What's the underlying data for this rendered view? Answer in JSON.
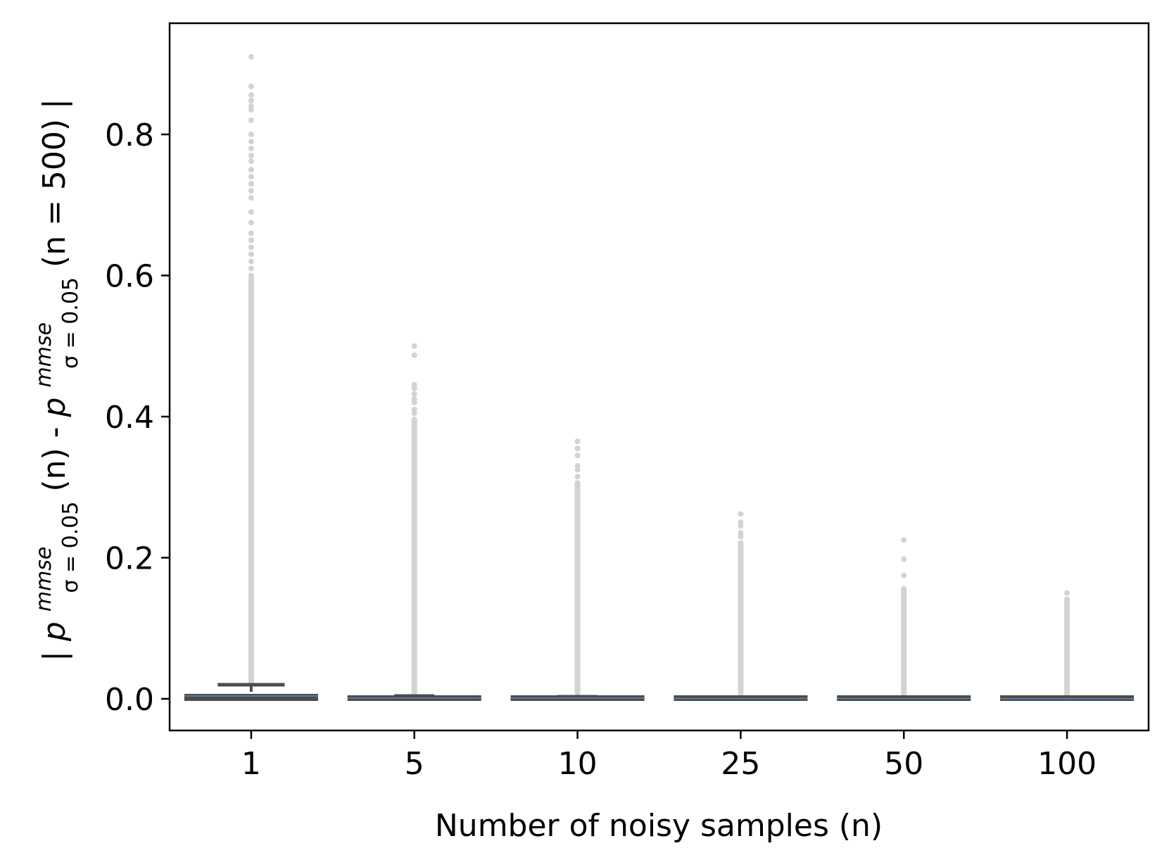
{
  "chart_data": {
    "type": "box",
    "xlabel": "Number of noisy samples (n)",
    "ylabel": {
      "prefix": "| ",
      "p1_base": "p",
      "p1_sup": "mmse",
      "p1_sub": "σ = 0.05",
      "p1_arg": "(n) - ",
      "p2_base": "p",
      "p2_sup": "mmse",
      "p2_sub": "σ = 0.05",
      "p2_arg": "(n = 500) |"
    },
    "categories": [
      "1",
      "5",
      "10",
      "25",
      "50",
      "100"
    ],
    "yticks": [
      "0.0",
      "0.2",
      "0.4",
      "0.6",
      "0.8"
    ],
    "ytick_values": [
      0.0,
      0.2,
      0.4,
      0.6,
      0.8
    ],
    "ylim": [
      -0.045,
      0.955
    ],
    "grid": false,
    "colors": {
      "box": "#4c4c4c",
      "median": "#5f86b8",
      "outliers": "#d3d3d3"
    },
    "boxes": [
      {
        "category": "1",
        "q1": 0.0,
        "median": 0.004,
        "q3": 0.01,
        "whisker_low": 0.0,
        "whisker_high": 0.02,
        "outliers": [
          0.91,
          0.868,
          0.856,
          0.848,
          0.84,
          0.835,
          0.82,
          0.8,
          0.79,
          0.78,
          0.77,
          0.762,
          0.75,
          0.74,
          0.73,
          0.72,
          0.71,
          0.69,
          0.675,
          0.66,
          0.65,
          0.64,
          0.63,
          0.62,
          0.61,
          0.6
        ],
        "outlier_range": [
          0.02,
          0.6
        ]
      },
      {
        "category": "5",
        "q1": 0.0,
        "median": 0.001,
        "q3": 0.003,
        "whisker_low": 0.0,
        "whisker_high": 0.004,
        "outliers": [
          0.5,
          0.487,
          0.445,
          0.44,
          0.432,
          0.425,
          0.42,
          0.41,
          0.405
        ],
        "outlier_range": [
          0.005,
          0.4
        ]
      },
      {
        "category": "10",
        "q1": 0.0,
        "median": 0.001,
        "q3": 0.002,
        "whisker_low": 0.0,
        "whisker_high": 0.003,
        "outliers": [
          0.365,
          0.355,
          0.345,
          0.33,
          0.325,
          0.315
        ],
        "outlier_range": [
          0.004,
          0.31
        ]
      },
      {
        "category": "25",
        "q1": 0.0,
        "median": 0.0005,
        "q3": 0.001,
        "whisker_low": 0.0,
        "whisker_high": 0.002,
        "outliers": [
          0.262,
          0.25,
          0.245,
          0.235,
          0.23
        ],
        "outlier_range": [
          0.003,
          0.225
        ]
      },
      {
        "category": "50",
        "q1": 0.0,
        "median": 0.0005,
        "q3": 0.001,
        "whisker_low": 0.0,
        "whisker_high": 0.002,
        "outliers": [
          0.225,
          0.198,
          0.175
        ],
        "outlier_range": [
          0.003,
          0.16
        ]
      },
      {
        "category": "100",
        "q1": 0.0,
        "median": 0.0003,
        "q3": 0.001,
        "whisker_low": 0.0,
        "whisker_high": 0.001,
        "outliers": [
          0.15
        ],
        "outlier_range": [
          0.002,
          0.145
        ]
      }
    ]
  }
}
